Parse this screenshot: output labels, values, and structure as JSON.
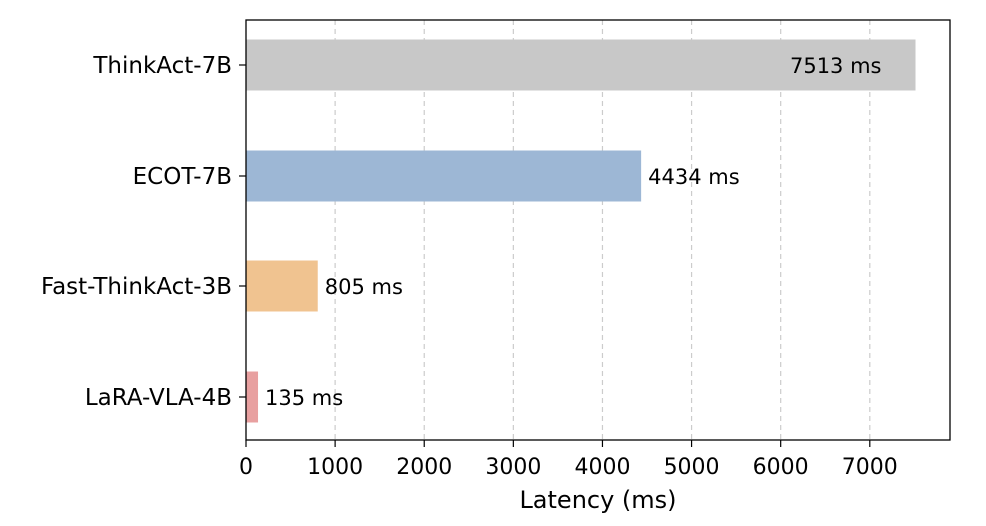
{
  "chart_data": {
    "type": "bar",
    "orientation": "horizontal",
    "categories": [
      "ThinkAct-7B",
      "ECOT-7B",
      "Fast-ThinkAct-3B",
      "LaRA-VLA-4B"
    ],
    "values": [
      7513,
      4434,
      805,
      135
    ],
    "data_labels": [
      "7513 ms",
      "4434 ms",
      "805 ms",
      "135 ms"
    ],
    "colors": [
      "#c8c8c8",
      "#9db7d5",
      "#f0c390",
      "#e8a0a0"
    ],
    "xlabel": "Latency (ms)",
    "xlim": [
      0,
      7900
    ],
    "xticks": [
      0,
      1000,
      2000,
      3000,
      4000,
      5000,
      6000,
      7000
    ],
    "xtick_labels": [
      "0",
      "1000",
      "2000",
      "3000",
      "4000",
      "5000",
      "6000",
      "7000"
    ],
    "grid": "vertical-dashed",
    "legend": "none"
  }
}
